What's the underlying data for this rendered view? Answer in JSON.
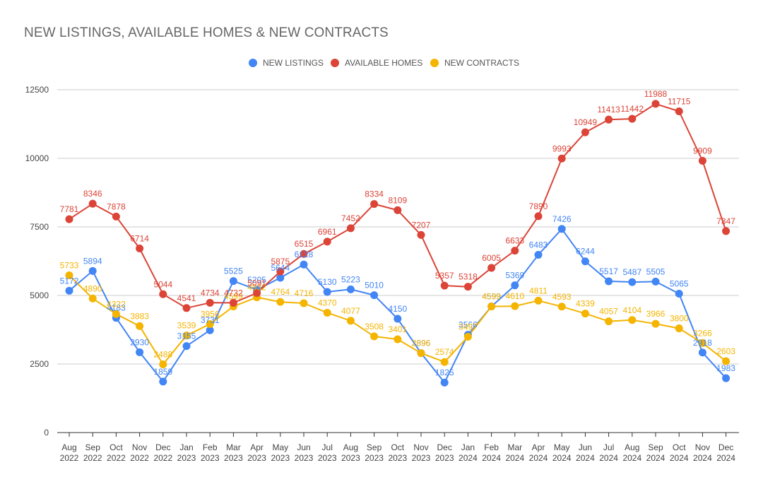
{
  "chart_data": {
    "type": "line",
    "title": "NEW LISTINGS, AVAILABLE HOMES & NEW CONTRACTS",
    "legend_position": "top",
    "grid": true,
    "ylim": [
      0,
      12500
    ],
    "yticks": [
      "0",
      "2500",
      "5000",
      "7500",
      "10000",
      "12500"
    ],
    "ytick_values": [
      0,
      2500,
      5000,
      7500,
      10000,
      12500
    ],
    "categories": [
      [
        "Aug",
        "2022"
      ],
      [
        "Sep",
        "2022"
      ],
      [
        "Oct",
        "2022"
      ],
      [
        "Nov",
        "2022"
      ],
      [
        "Dec",
        "2022"
      ],
      [
        "Jan",
        "2023"
      ],
      [
        "Feb",
        "2023"
      ],
      [
        "Mar",
        "2023"
      ],
      [
        "Apr",
        "2023"
      ],
      [
        "May",
        "2023"
      ],
      [
        "Jun",
        "2023"
      ],
      [
        "Jul",
        "2023"
      ],
      [
        "Aug",
        "2023"
      ],
      [
        "Sep",
        "2023"
      ],
      [
        "Oct",
        "2023"
      ],
      [
        "Nov",
        "2023"
      ],
      [
        "Dec",
        "2023"
      ],
      [
        "Jan",
        "2024"
      ],
      [
        "Feb",
        "2024"
      ],
      [
        "Mar",
        "2024"
      ],
      [
        "Apr",
        "2024"
      ],
      [
        "May",
        "2024"
      ],
      [
        "Jun",
        "2024"
      ],
      [
        "Jul",
        "2024"
      ],
      [
        "Aug",
        "2024"
      ],
      [
        "Sep",
        "2024"
      ],
      [
        "Oct",
        "2024"
      ],
      [
        "Nov",
        "2024"
      ],
      [
        "Dec",
        "2024"
      ]
    ],
    "series": [
      {
        "name": "NEW LISTINGS",
        "color": "#4285f4",
        "values": [
          5172,
          5894,
          4183,
          2930,
          1859,
          3155,
          3731,
          5525,
          5205,
          5644,
          6128,
          5130,
          5223,
          5010,
          4150,
          2896,
          1825,
          3566,
          4599,
          5369,
          6483,
          7426,
          6244,
          5517,
          5487,
          5505,
          5065,
          2918,
          1983
        ]
      },
      {
        "name": "AVAILABLE HOMES",
        "color": "#db4437",
        "values": [
          7781,
          8346,
          7878,
          6714,
          5044,
          4541,
          4734,
          4732,
          5091,
          5875,
          6515,
          6961,
          7452,
          8334,
          8109,
          7207,
          5357,
          5318,
          6005,
          6633,
          7890,
          9993,
          10949,
          11413,
          11442,
          11988,
          11715,
          9909,
          7347
        ]
      },
      {
        "name": "NEW CONTRACTS",
        "color": "#f4b400",
        "values": [
          5733,
          4890,
          4322,
          3883,
          2488,
          3539,
          3956,
          4599,
          4932,
          4764,
          4716,
          4370,
          4077,
          3508,
          3401,
          2896,
          2574,
          3497,
          4599,
          4610,
          4811,
          4593,
          4339,
          4057,
          4104,
          3966,
          3800,
          3266,
          2603
        ]
      }
    ]
  }
}
